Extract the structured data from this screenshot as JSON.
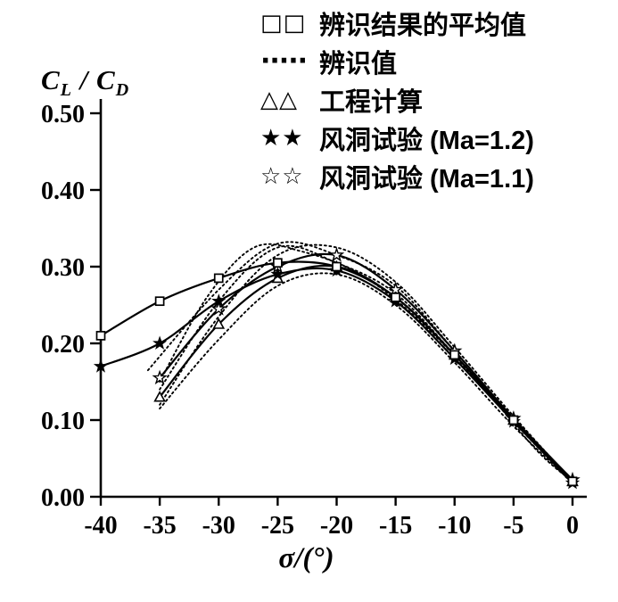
{
  "figure": {
    "background": "#ffffff",
    "ink_color": "#000000"
  },
  "ylabel": {
    "c1": "C",
    "sub1": "L",
    "sep": " / ",
    "c2": "C",
    "sub2": "D",
    "text": "C_L / C_D"
  },
  "xlabel": {
    "text": "σ/(°)"
  },
  "legend": {
    "position": "top-right",
    "items": [
      {
        "marker": "□□",
        "icon": "open-square-marker",
        "label": "辨识结果的平均值"
      },
      {
        "marker": "·····",
        "icon": "dotted-line-marker",
        "label": "辨识值"
      },
      {
        "marker": "△△",
        "icon": "open-triangle-marker",
        "label": "工程计算"
      },
      {
        "marker": "★★",
        "icon": "filled-star-marker",
        "label": "风洞试验 (Ma=1.2)"
      },
      {
        "marker": "☆☆",
        "icon": "open-star-marker",
        "label": "风洞试验 (Ma=1.1)"
      }
    ]
  },
  "chart_data": {
    "type": "line",
    "title": "",
    "xlabel": "σ/(°)",
    "ylabel": "C_L / C_D",
    "xlim": [
      -40,
      0
    ],
    "ylim": [
      0.0,
      0.5
    ],
    "xticks": [
      -40,
      -35,
      -30,
      -25,
      -20,
      -15,
      -10,
      -5,
      0
    ],
    "xtick_labels": [
      "-40",
      "-35",
      "-30",
      "-25",
      "-20",
      "-15",
      "-10",
      "-5",
      "0"
    ],
    "yticks": [
      0.0,
      0.1,
      0.2,
      0.3,
      0.4,
      0.5
    ],
    "ytick_labels": [
      "0.00",
      "0.10",
      "0.20",
      "0.30",
      "0.40",
      "0.50"
    ],
    "grid": false,
    "legend_position": "top-right",
    "series": [
      {
        "name": "辨识值",
        "marker": "none",
        "line": "dotted",
        "x": [
          -35,
          -30,
          -25,
          -20,
          -15,
          -10,
          -5,
          0
        ],
        "y": [
          0.12,
          0.235,
          0.315,
          0.325,
          0.28,
          0.195,
          0.105,
          0.02
        ]
      },
      {
        "name": "辨识值",
        "marker": "none",
        "line": "dotted",
        "x": [
          -35,
          -30,
          -25,
          -20,
          -15,
          -10,
          -5,
          0
        ],
        "y": [
          0.14,
          0.255,
          0.325,
          0.305,
          0.265,
          0.185,
          0.098,
          0.018
        ]
      },
      {
        "name": "辨识值",
        "marker": "none",
        "line": "dotted",
        "x": [
          -35,
          -30,
          -25,
          -20,
          -15,
          -10,
          -5,
          0
        ],
        "y": [
          0.115,
          0.205,
          0.275,
          0.29,
          0.25,
          0.175,
          0.092,
          0.018
        ]
      },
      {
        "name": "辨识值",
        "marker": "none",
        "line": "dotted",
        "x": [
          -36,
          -30,
          -25,
          -20,
          -15,
          -10,
          -5,
          0
        ],
        "y": [
          0.165,
          0.27,
          0.33,
          0.315,
          0.275,
          0.19,
          0.1,
          0.02
        ]
      },
      {
        "name": "辨识值",
        "marker": "none",
        "line": "dotted",
        "x": [
          -35,
          -31,
          -27,
          -23,
          -18,
          -13,
          -8,
          -3,
          0
        ],
        "y": [
          0.15,
          0.26,
          0.325,
          0.32,
          0.29,
          0.23,
          0.15,
          0.06,
          0.02
        ]
      },
      {
        "name": "工程计算",
        "marker": "open-triangle",
        "line": "solid",
        "x": [
          -35,
          -30,
          -25,
          -20,
          -15,
          -10,
          -5,
          0
        ],
        "y": [
          0.13,
          0.225,
          0.285,
          0.3,
          0.26,
          0.185,
          0.1,
          0.02
        ]
      },
      {
        "name": "风洞试验 (Ma=1.1)",
        "marker": "open-star",
        "line": "solid",
        "x": [
          -35,
          -30,
          -25,
          -20,
          -15,
          -10,
          -5,
          0
        ],
        "y": [
          0.155,
          0.245,
          0.3,
          0.315,
          0.27,
          0.19,
          0.102,
          0.022
        ]
      },
      {
        "name": "风洞试验 (Ma=1.2)",
        "marker": "filled-star",
        "line": "solid",
        "x": [
          -40,
          -35,
          -30,
          -25,
          -20,
          -15,
          -10,
          -5,
          0
        ],
        "y": [
          0.17,
          0.2,
          0.255,
          0.29,
          0.295,
          0.255,
          0.18,
          0.098,
          0.018
        ]
      },
      {
        "name": "辨识结果的平均值",
        "marker": "open-square",
        "line": "solid",
        "x": [
          -40,
          -35,
          -30,
          -25,
          -20,
          -15,
          -10,
          -5,
          0
        ],
        "y": [
          0.21,
          0.255,
          0.285,
          0.305,
          0.3,
          0.26,
          0.185,
          0.1,
          0.02
        ]
      }
    ]
  }
}
